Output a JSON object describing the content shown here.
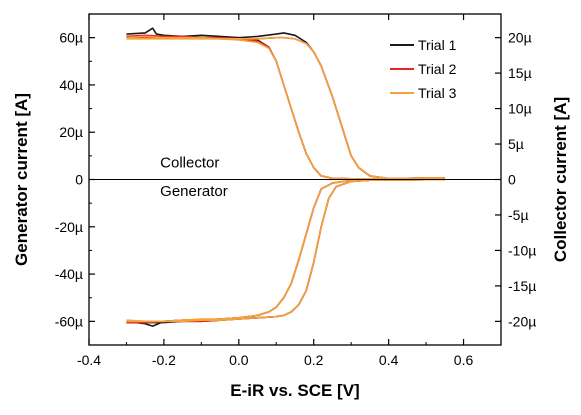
{
  "colors": {
    "trial1": "#1a1a1a",
    "trial2": "#e8261e",
    "trial3": "#f4a23c",
    "axes": "#000000"
  },
  "chart_data": {
    "type": "line",
    "xlabel": "E-iR vs. SCE [V]",
    "ylabel": "Generator current [A]",
    "y2label": "Collector current [A]",
    "xlim": [
      -0.4,
      0.7
    ],
    "ylim": [
      -70,
      70
    ],
    "y2lim": [
      -23.333,
      23.333
    ],
    "x_ticks": [
      -0.4,
      -0.2,
      0.0,
      0.2,
      0.4,
      0.6
    ],
    "x_tick_labels": [
      "-0.4",
      "-0.2",
      "0.0",
      "0.2",
      "0.4",
      "0.6"
    ],
    "y_ticks": [
      -60,
      -40,
      -20,
      0,
      20,
      40,
      60
    ],
    "y_tick_labels": [
      "-60µ",
      "-40µ",
      "-20µ",
      "0",
      "20µ",
      "40µ",
      "60µ"
    ],
    "y2_ticks": [
      -20,
      -15,
      -10,
      -5,
      0,
      5,
      10,
      15,
      20
    ],
    "y2_tick_labels": [
      "-20µ",
      "-15µ",
      "-10µ",
      "-5µ",
      "0",
      "5µ",
      "10µ",
      "15µ",
      "20µ"
    ],
    "annotations": [
      {
        "text": "Collector",
        "x": -0.21,
        "y": 5
      },
      {
        "text": "Generator",
        "x": -0.21,
        "y": -7
      }
    ],
    "legend_position": "top-right",
    "zero_line": true,
    "series": [
      {
        "name": "Trial 1",
        "color": "#1a1a1a",
        "collector_forward": {
          "x": [
            -0.3,
            -0.25,
            -0.23,
            -0.22,
            -0.2,
            -0.15,
            -0.1,
            -0.05,
            0.0,
            0.05,
            0.08,
            0.1,
            0.12,
            0.14,
            0.16,
            0.18,
            0.2,
            0.22,
            0.25,
            0.3,
            0.35,
            0.4,
            0.5,
            0.55
          ],
          "y": [
            61.5,
            62,
            64,
            61.5,
            61,
            60.5,
            60,
            60,
            60,
            59,
            56,
            50,
            40,
            30,
            20,
            11,
            5,
            1.5,
            0.5,
            0.3,
            0.3,
            0.4,
            0.6,
            0.6
          ]
        },
        "collector_reverse": {
          "x": [
            0.55,
            0.5,
            0.4,
            0.35,
            0.32,
            0.3,
            0.28,
            0.25,
            0.22,
            0.2,
            0.18,
            0.15,
            0.12,
            0.1,
            0.05,
            0.0,
            -0.05,
            -0.1,
            -0.15,
            -0.2,
            -0.25,
            -0.3
          ],
          "y": [
            0.6,
            0.6,
            0.4,
            1.5,
            5,
            10,
            20,
            35,
            48,
            54,
            58,
            61,
            62,
            61.5,
            60.5,
            60,
            60.5,
            61,
            60.5,
            60,
            60.5,
            60.5
          ]
        },
        "generator_forward": {
          "x": [
            -0.3,
            -0.25,
            -0.23,
            -0.2,
            -0.15,
            -0.1,
            -0.05,
            0.0,
            0.05,
            0.08,
            0.1,
            0.12,
            0.14,
            0.16,
            0.18,
            0.2,
            0.22,
            0.25,
            0.28,
            0.3,
            0.35,
            0.4,
            0.5,
            0.55
          ],
          "y": [
            -60,
            -61,
            -62,
            -60,
            -59.5,
            -59.5,
            -59,
            -58.5,
            -57.5,
            -56,
            -54,
            -50,
            -44,
            -34,
            -23,
            -12,
            -4,
            -1.5,
            -0.8,
            -0.5,
            -0.3,
            -0.2,
            -0.1,
            -0.1
          ]
        },
        "generator_reverse": {
          "x": [
            0.55,
            0.5,
            0.4,
            0.35,
            0.3,
            0.26,
            0.24,
            0.22,
            0.2,
            0.18,
            0.16,
            0.14,
            0.12,
            0.1,
            0.05,
            0.0,
            -0.05,
            -0.1,
            -0.15,
            -0.2,
            -0.25,
            -0.3
          ],
          "y": [
            -0.1,
            -0.1,
            -0.2,
            -0.3,
            -0.8,
            -3,
            -8,
            -20,
            -35,
            -47,
            -53,
            -56,
            -57.5,
            -58,
            -58.5,
            -59,
            -59.5,
            -60,
            -60,
            -60.5,
            -60.5,
            -60.5
          ]
        }
      },
      {
        "name": "Trial 2",
        "color": "#e8261e",
        "collector_forward": {
          "x": [
            -0.3,
            -0.25,
            -0.2,
            -0.15,
            -0.1,
            -0.05,
            0.0,
            0.05,
            0.08,
            0.1,
            0.12,
            0.14,
            0.16,
            0.18,
            0.2,
            0.22,
            0.25,
            0.3,
            0.35,
            0.4,
            0.5,
            0.55
          ],
          "y": [
            60.5,
            61,
            60.5,
            60.5,
            60,
            60,
            59.5,
            58.5,
            56,
            50,
            40,
            30,
            20,
            11,
            5,
            1.5,
            0.5,
            0.3,
            0.3,
            0.4,
            0.6,
            0.6
          ]
        },
        "collector_reverse": {
          "x": [
            0.55,
            0.5,
            0.4,
            0.35,
            0.32,
            0.3,
            0.28,
            0.25,
            0.22,
            0.2,
            0.18,
            0.15,
            0.12,
            0.1,
            0.05,
            0.0,
            -0.05,
            -0.1,
            -0.15,
            -0.2,
            -0.25,
            -0.3
          ],
          "y": [
            0.6,
            0.6,
            0.4,
            1.5,
            5,
            10,
            20,
            35,
            48,
            54,
            57.5,
            59.5,
            60,
            60,
            59.5,
            59.5,
            59.5,
            60,
            60,
            60,
            60,
            60
          ]
        },
        "generator_forward": {
          "x": [
            -0.3,
            -0.25,
            -0.2,
            -0.15,
            -0.1,
            -0.05,
            0.0,
            0.05,
            0.08,
            0.1,
            0.12,
            0.14,
            0.16,
            0.18,
            0.2,
            0.22,
            0.25,
            0.28,
            0.3,
            0.35,
            0.4,
            0.5,
            0.55
          ],
          "y": [
            -60,
            -60.5,
            -60,
            -59.5,
            -59.5,
            -59,
            -58.5,
            -57.5,
            -56,
            -54,
            -50,
            -44,
            -34,
            -23,
            -12,
            -4,
            -1.5,
            -0.8,
            -0.5,
            -0.3,
            -0.2,
            -0.1,
            -0.1
          ]
        },
        "generator_reverse": {
          "x": [
            0.55,
            0.5,
            0.4,
            0.35,
            0.3,
            0.26,
            0.24,
            0.22,
            0.2,
            0.18,
            0.16,
            0.14,
            0.12,
            0.1,
            0.05,
            0.0,
            -0.05,
            -0.1,
            -0.15,
            -0.2,
            -0.25,
            -0.3
          ],
          "y": [
            -0.1,
            -0.1,
            -0.2,
            -0.3,
            -0.8,
            -3,
            -8,
            -20,
            -35,
            -47,
            -53,
            -56,
            -57.5,
            -58,
            -58.5,
            -59,
            -59.5,
            -60,
            -60,
            -60,
            -60.5,
            -60.5
          ]
        }
      },
      {
        "name": "Trial 3",
        "color": "#f4a23c",
        "collector_forward": {
          "x": [
            -0.3,
            -0.25,
            -0.2,
            -0.15,
            -0.1,
            -0.05,
            0.0,
            0.05,
            0.08,
            0.1,
            0.12,
            0.14,
            0.16,
            0.18,
            0.2,
            0.22,
            0.25,
            0.3,
            0.35,
            0.4,
            0.5,
            0.55
          ],
          "y": [
            60,
            60.5,
            60,
            60,
            60,
            59.5,
            59,
            58,
            55.5,
            50,
            40,
            30,
            20,
            11,
            5,
            1.5,
            0.5,
            0.3,
            0.3,
            0.4,
            0.6,
            0.6
          ]
        },
        "collector_reverse": {
          "x": [
            0.55,
            0.5,
            0.4,
            0.35,
            0.32,
            0.3,
            0.28,
            0.25,
            0.22,
            0.2,
            0.18,
            0.15,
            0.12,
            0.1,
            0.05,
            0.0,
            -0.05,
            -0.1,
            -0.15,
            -0.2,
            -0.25,
            -0.3
          ],
          "y": [
            0.6,
            0.6,
            0.4,
            1.5,
            5,
            10,
            20,
            35,
            48,
            54,
            57.5,
            59.5,
            60,
            60,
            59.5,
            59.5,
            59.5,
            59.5,
            59.5,
            59.5,
            59.5,
            59.5
          ]
        },
        "generator_forward": {
          "x": [
            -0.3,
            -0.25,
            -0.2,
            -0.15,
            -0.1,
            -0.05,
            0.0,
            0.05,
            0.08,
            0.1,
            0.12,
            0.14,
            0.16,
            0.18,
            0.2,
            0.22,
            0.25,
            0.28,
            0.3,
            0.35,
            0.4,
            0.5,
            0.55
          ],
          "y": [
            -59.5,
            -60,
            -60,
            -59.5,
            -59,
            -59,
            -58.5,
            -57.5,
            -56,
            -54,
            -50,
            -44,
            -34,
            -23,
            -12,
            -4,
            -1.5,
            -0.8,
            -0.5,
            -0.3,
            -0.2,
            -0.1,
            -0.1
          ]
        },
        "generator_reverse": {
          "x": [
            0.55,
            0.5,
            0.4,
            0.35,
            0.3,
            0.26,
            0.24,
            0.22,
            0.2,
            0.18,
            0.16,
            0.14,
            0.12,
            0.1,
            0.05,
            0.0,
            -0.05,
            -0.1,
            -0.15,
            -0.2,
            -0.25,
            -0.3
          ],
          "y": [
            -0.1,
            -0.1,
            -0.2,
            -0.3,
            -0.8,
            -3,
            -8,
            -20,
            -35,
            -47,
            -53,
            -56,
            -57.5,
            -58,
            -58.5,
            -59,
            -59.5,
            -59.5,
            -60,
            -60,
            -60,
            -60
          ]
        }
      }
    ]
  }
}
